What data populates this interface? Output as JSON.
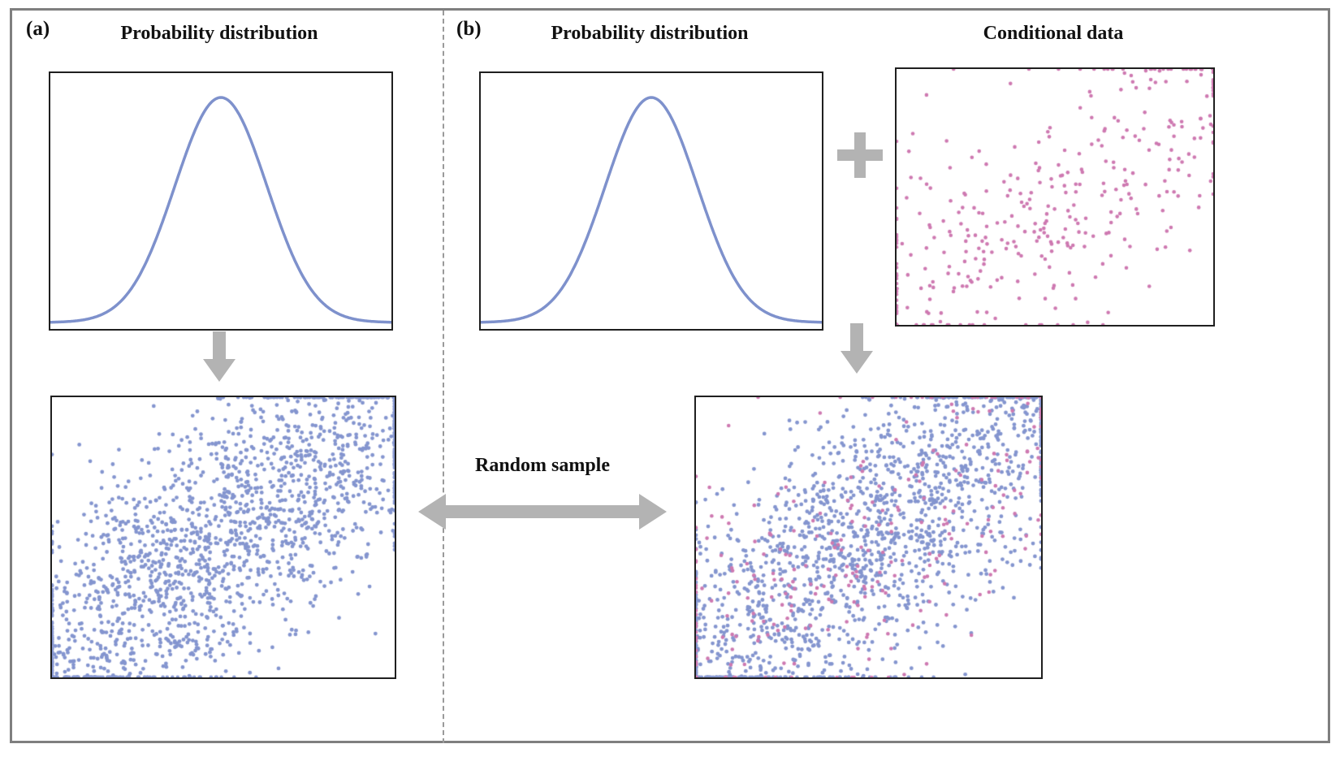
{
  "panels": {
    "a": {
      "label": "(a)",
      "dist_title": "Probability distribution"
    },
    "b": {
      "label": "(b)",
      "dist_title": "Probability distribution",
      "cond_title": "Conditional data"
    }
  },
  "random_sample_label": "Random sample",
  "colors": {
    "curve": "#7e91cc",
    "sample_dots": "#8495cf",
    "conditional_dots": "#ce79b1",
    "arrow_gray": "#b3b3b3",
    "outer_border": "#7f7f7f",
    "plot_border": "#1f1f1f"
  },
  "chart_data": [
    {
      "id": "gauss-a",
      "type": "line",
      "curve": "gaussian",
      "title": "Probability distribution",
      "mu": 0.5,
      "sigma": 0.135,
      "color": "#7e91cc"
    },
    {
      "id": "scatter-a",
      "type": "scatter",
      "title": "Random sample drawn from probability distribution",
      "xlim": [
        0,
        1
      ],
      "ylim": [
        0,
        1
      ],
      "series": [
        {
          "name": "samples",
          "n": 2000,
          "rho": 0.78,
          "spread": 0.37,
          "color": "#8495cf",
          "radius": 2.4,
          "seed": 42
        }
      ]
    },
    {
      "id": "gauss-b",
      "type": "line",
      "curve": "gaussian",
      "title": "Probability distribution",
      "mu": 0.5,
      "sigma": 0.135,
      "color": "#7e91cc"
    },
    {
      "id": "conditional-b",
      "type": "scatter",
      "title": "Conditional data",
      "xlim": [
        0,
        1
      ],
      "ylim": [
        0,
        1
      ],
      "series": [
        {
          "name": "conditional",
          "n": 400,
          "rho": 0.68,
          "spread": 0.37,
          "color": "#ce79b1",
          "radius": 2.3,
          "seed": 7
        }
      ]
    },
    {
      "id": "scatter-b",
      "type": "scatter",
      "title": "Random sample conditioned on data",
      "xlim": [
        0,
        1
      ],
      "ylim": [
        0,
        1
      ],
      "series": [
        {
          "name": "samples",
          "n": 1800,
          "rho": 0.78,
          "spread": 0.37,
          "color": "#8495cf",
          "radius": 2.4,
          "seed": 99
        },
        {
          "name": "conditional",
          "n": 300,
          "rho": 0.68,
          "spread": 0.37,
          "color": "#ce79b1",
          "radius": 2.3,
          "seed": 7
        }
      ]
    }
  ]
}
